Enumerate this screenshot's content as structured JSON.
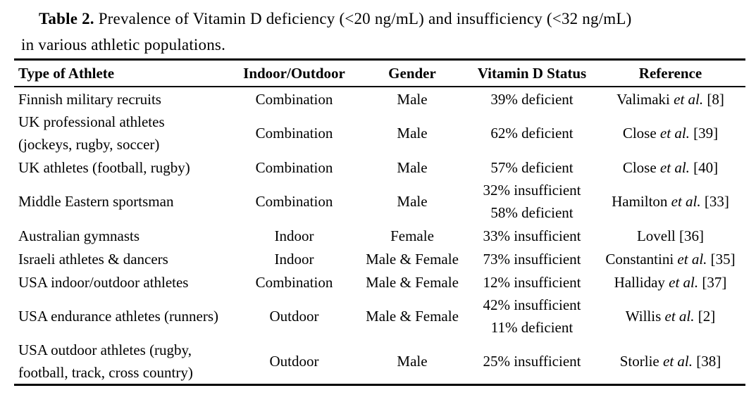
{
  "title": {
    "label": "Table 2.",
    "line1_rest": "Prevalence of Vitamin D deficiency (<20 ng/mL) and insufficiency (<32 ng/mL)",
    "line2": "in various athletic populations."
  },
  "table": {
    "columns": [
      {
        "key": "athlete",
        "label": "Type of Athlete"
      },
      {
        "key": "indoor-outdoor",
        "label": "Indoor/Outdoor"
      },
      {
        "key": "gender",
        "label": "Gender"
      },
      {
        "key": "vitamin-d-status",
        "label": "Vitamin D Status"
      },
      {
        "key": "reference",
        "label": "Reference"
      }
    ],
    "rows": [
      {
        "athlete_lines": [
          "Finnish military recruits"
        ],
        "indoor_outdoor": "Combination",
        "gender": "Male",
        "status_lines": [
          "39% deficient"
        ],
        "reference": {
          "name": "Valimaki",
          "etal": "et al.",
          "cite": "[8]"
        }
      },
      {
        "athlete_lines": [
          "UK professional athletes",
          "(jockeys, rugby, soccer)"
        ],
        "indoor_outdoor": "Combination",
        "gender": "Male",
        "status_lines": [
          "62% deficient"
        ],
        "reference": {
          "name": "Close",
          "etal": "et al.",
          "cite": "[39]"
        }
      },
      {
        "athlete_lines": [
          "UK athletes (football, rugby)"
        ],
        "indoor_outdoor": "Combination",
        "gender": "Male",
        "status_lines": [
          "57% deficient"
        ],
        "reference": {
          "name": "Close",
          "etal": "et al.",
          "cite": "[40]"
        }
      },
      {
        "athlete_lines": [
          "Middle Eastern sportsman"
        ],
        "indoor_outdoor": "Combination",
        "gender": "Male",
        "status_lines": [
          "32% insufficient",
          "58% deficient"
        ],
        "reference": {
          "name": "Hamilton",
          "etal": "et al.",
          "cite": "[33]"
        }
      },
      {
        "athlete_lines": [
          "Australian gymnasts"
        ],
        "indoor_outdoor": "Indoor",
        "gender": "Female",
        "status_lines": [
          "33% insufficient"
        ],
        "reference": {
          "name": "Lovell",
          "etal": "",
          "cite": "[36]"
        }
      },
      {
        "athlete_lines": [
          "Israeli athletes & dancers"
        ],
        "indoor_outdoor": "Indoor",
        "gender": "Male & Female",
        "status_lines": [
          "73% insufficient"
        ],
        "reference": {
          "name": "Constantini",
          "etal": "et al.",
          "cite": "[35]"
        }
      },
      {
        "athlete_lines": [
          "USA indoor/outdoor athletes"
        ],
        "indoor_outdoor": "Combination",
        "gender": "Male & Female",
        "status_lines": [
          "12% insufficient"
        ],
        "reference": {
          "name": "Halliday",
          "etal": "et al.",
          "cite": "[37]"
        }
      },
      {
        "athlete_lines": [
          "USA endurance athletes (runners)"
        ],
        "indoor_outdoor": "Outdoor",
        "gender": "Male & Female",
        "status_lines": [
          "42% insufficient",
          "11% deficient"
        ],
        "reference": {
          "name": "Willis",
          "etal": "et al.",
          "cite": "[2]"
        }
      },
      {
        "athlete_lines": [
          "USA outdoor athletes (rugby,",
          "football, track, cross country)"
        ],
        "indoor_outdoor": "Outdoor",
        "gender": "Male",
        "status_lines": [
          "25% insufficient"
        ],
        "reference": {
          "name": "Storlie",
          "etal": "et al.",
          "cite": "[38]"
        }
      }
    ]
  }
}
